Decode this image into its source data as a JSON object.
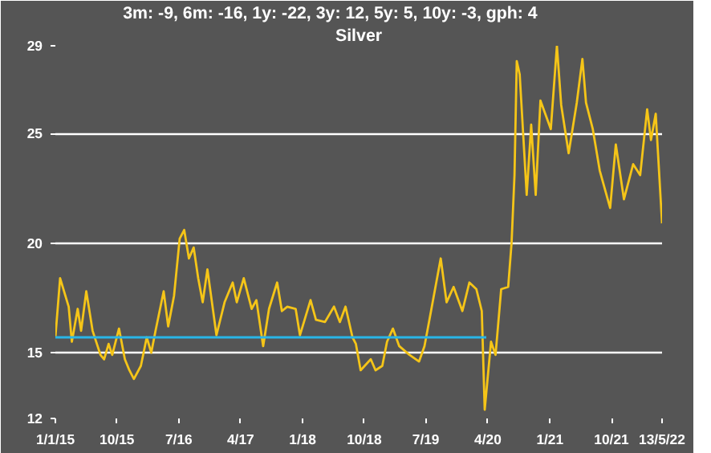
{
  "chart_data": {
    "type": "line",
    "title": "Silver",
    "subtitle": "3m: -9,   6m: -16,   1y: -22,   3y: 12,   5y: 5,   10y: -3,   gph: 4",
    "xlim": [
      "2015-01-01",
      "2022-05-13"
    ],
    "xticks": [
      {
        "value": "2015-01-01",
        "label": "1/1/15"
      },
      {
        "value": "2015-10-01",
        "label": "10/15"
      },
      {
        "value": "2016-07-01",
        "label": "7/16"
      },
      {
        "value": "2017-04-01",
        "label": "4/17"
      },
      {
        "value": "2018-01-01",
        "label": "1/18"
      },
      {
        "value": "2018-10-01",
        "label": "10/18"
      },
      {
        "value": "2019-07-01",
        "label": "7/19"
      },
      {
        "value": "2020-04-01",
        "label": "4/20"
      },
      {
        "value": "2021-01-01",
        "label": "1/21"
      },
      {
        "value": "2021-10-01",
        "label": "10/21"
      },
      {
        "value": "2022-05-13",
        "label": "13/5/22"
      }
    ],
    "ylim": [
      12,
      29
    ],
    "yticks": [
      12,
      15,
      20,
      25,
      29
    ],
    "grid": "y",
    "line_style": "solid",
    "series": [
      {
        "color": "#f5c518",
        "x": [
          "2015-01-01",
          "2015-01-22",
          "2015-03-01",
          "2015-03-15",
          "2015-04-10",
          "2015-04-25",
          "2015-05-18",
          "2015-06-15",
          "2015-07-20",
          "2015-08-05",
          "2015-08-25",
          "2015-09-10",
          "2015-10-10",
          "2015-11-05",
          "2015-11-25",
          "2015-12-15",
          "2016-01-15",
          "2016-02-10",
          "2016-03-01",
          "2016-03-20",
          "2016-04-25",
          "2016-05-15",
          "2016-06-10",
          "2016-07-05",
          "2016-07-25",
          "2016-08-15",
          "2016-09-05",
          "2016-09-25",
          "2016-10-15",
          "2016-11-05",
          "2016-12-15",
          "2017-01-20",
          "2017-02-25",
          "2017-03-15",
          "2017-04-15",
          "2017-05-20",
          "2017-06-10",
          "2017-07-10",
          "2017-08-05",
          "2017-09-10",
          "2017-10-01",
          "2017-10-25",
          "2017-12-01",
          "2017-12-20",
          "2018-02-05",
          "2018-03-01",
          "2018-04-10",
          "2018-05-20",
          "2018-06-15",
          "2018-07-10",
          "2018-08-10",
          "2018-08-25",
          "2018-09-15",
          "2018-10-30",
          "2018-11-20",
          "2018-12-20",
          "2019-01-10",
          "2019-02-05",
          "2019-03-05",
          "2019-04-20",
          "2019-06-01",
          "2019-06-25",
          "2019-07-15",
          "2019-09-05",
          "2019-10-01",
          "2019-11-01",
          "2019-12-10",
          "2020-01-10",
          "2020-02-10",
          "2020-03-05",
          "2020-03-18",
          "2020-04-15",
          "2020-05-05",
          "2020-05-30",
          "2020-06-30",
          "2020-07-15",
          "2020-07-28",
          "2020-08-07",
          "2020-08-20",
          "2020-09-10",
          "2020-09-20",
          "2020-10-10",
          "2020-10-30",
          "2020-11-20",
          "2021-01-05",
          "2021-02-01",
          "2021-02-20",
          "2021-03-25",
          "2021-04-30",
          "2021-05-25",
          "2021-06-10",
          "2021-07-10",
          "2021-08-10",
          "2021-09-25",
          "2021-10-20",
          "2021-11-25",
          "2022-01-05",
          "2022-02-05",
          "2022-03-08",
          "2022-03-25",
          "2022-04-15",
          "2022-05-13"
        ],
        "values": [
          15.7,
          18.4,
          17.1,
          15.5,
          17.0,
          16.0,
          17.8,
          16.0,
          14.9,
          14.7,
          15.4,
          14.9,
          16.1,
          14.7,
          14.2,
          13.8,
          14.4,
          15.7,
          15.0,
          16.0,
          17.8,
          16.2,
          17.6,
          20.2,
          20.6,
          19.3,
          19.8,
          18.4,
          17.3,
          18.8,
          15.8,
          17.3,
          18.2,
          17.3,
          18.4,
          17.0,
          17.4,
          15.3,
          17.0,
          18.2,
          16.9,
          17.1,
          17.0,
          15.8,
          17.4,
          16.5,
          16.4,
          17.1,
          16.4,
          17.1,
          15.7,
          15.4,
          14.2,
          14.7,
          14.2,
          14.4,
          15.5,
          16.1,
          15.3,
          14.9,
          14.6,
          15.3,
          16.4,
          19.3,
          17.3,
          18.0,
          16.9,
          18.2,
          17.9,
          16.9,
          12.4,
          15.5,
          14.9,
          17.9,
          18.0,
          20.0,
          23.1,
          28.3,
          27.7,
          24.0,
          22.2,
          25.4,
          22.2,
          26.5,
          25.2,
          29.0,
          26.3,
          24.1,
          26.4,
          28.4,
          26.4,
          25.2,
          23.3,
          21.6,
          24.5,
          22.0,
          23.6,
          23.1,
          26.1,
          24.7,
          25.9,
          20.9
        ]
      },
      {
        "color": "#29b6e8",
        "x": [
          "2015-01-01",
          "2020-03-25"
        ],
        "values": [
          15.7,
          15.7
        ]
      }
    ]
  }
}
